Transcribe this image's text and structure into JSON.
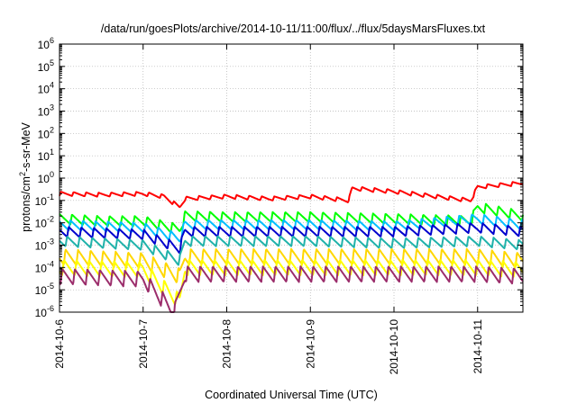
{
  "chart_data": {
    "type": "line",
    "title": "/data/run/goesPlots/archive/2014-10-11/11:00/flux/../flux/5daysMarsFluxes.txt",
    "xlabel": "Coordinated Universal Time (UTC)",
    "ylabel": {
      "base": "protons/cm",
      "sup": "2",
      "rest": "-s-sr-MeV"
    },
    "y_scale": "log",
    "ylim": [
      1e-06,
      1000000.0
    ],
    "y_ticks": [
      {
        "value": 1e-06,
        "base": "10",
        "exp": "-6"
      },
      {
        "value": 1e-05,
        "base": "10",
        "exp": "-5"
      },
      {
        "value": 0.0001,
        "base": "10",
        "exp": "-4"
      },
      {
        "value": 0.001,
        "base": "10",
        "exp": "-3"
      },
      {
        "value": 0.01,
        "base": "10",
        "exp": "-2"
      },
      {
        "value": 0.1,
        "base": "10",
        "exp": "-1"
      },
      {
        "value": 1,
        "base": "10",
        "exp": "0"
      },
      {
        "value": 10,
        "base": "10",
        "exp": "1"
      },
      {
        "value": 100,
        "base": "10",
        "exp": "2"
      },
      {
        "value": 1000,
        "base": "10",
        "exp": "3"
      },
      {
        "value": 10000,
        "base": "10",
        "exp": "4"
      },
      {
        "value": 100000,
        "base": "10",
        "exp": "5"
      },
      {
        "value": 1000000,
        "base": "10",
        "exp": "6"
      }
    ],
    "x_ticks": [
      "2014-10-6",
      "2014-10-7",
      "2014-10-8",
      "2014-10-9",
      "2014-10-10",
      "2014-10-11"
    ],
    "xlim": [
      "2014-10-06T00:00",
      "2014-10-11T13:00"
    ],
    "grid": true,
    "legend": "none",
    "series": [
      {
        "color": "#ff0000",
        "description": "sawtooth, period ~0.15 day",
        "points": [
          [
            "2014-10-06T00:00",
            0.2
          ],
          [
            "2014-10-06T12:00",
            0.18
          ],
          [
            "2014-10-07T00:00",
            0.2
          ],
          [
            "2014-10-07T06:00",
            0.15
          ],
          [
            "2014-10-07T10:30",
            0.05
          ],
          [
            "2014-10-07T12:00",
            0.12
          ],
          [
            "2014-10-08T00:00",
            0.15
          ],
          [
            "2014-10-08T12:00",
            0.12
          ],
          [
            "2014-10-09T00:00",
            0.15
          ],
          [
            "2014-10-09T11:00",
            0.1
          ],
          [
            "2014-10-09T12:00",
            0.35
          ],
          [
            "2014-10-10T00:00",
            0.25
          ],
          [
            "2014-10-10T12:00",
            0.15
          ],
          [
            "2014-10-10T22:00",
            0.1
          ],
          [
            "2014-10-11T00:00",
            0.4
          ],
          [
            "2014-10-11T13:00",
            0.6
          ]
        ]
      },
      {
        "color": "#00ff00",
        "description": "sawtooth, period ~0.15 day",
        "points": [
          [
            "2014-10-06T00:00",
            0.015
          ],
          [
            "2014-10-06T12:00",
            0.012
          ],
          [
            "2014-10-07T00:00",
            0.012
          ],
          [
            "2014-10-07T10:30",
            0.005
          ],
          [
            "2014-10-07T12:00",
            0.02
          ],
          [
            "2014-10-08T00:00",
            0.018
          ],
          [
            "2014-10-09T00:00",
            0.018
          ],
          [
            "2014-10-10T00:00",
            0.015
          ],
          [
            "2014-10-10T22:00",
            0.012
          ],
          [
            "2014-10-11T00:00",
            0.05
          ],
          [
            "2014-10-11T13:00",
            0.02
          ]
        ]
      },
      {
        "color": "#00bfff",
        "description": "sawtooth, period ~0.15 day",
        "points": [
          [
            "2014-10-06T00:00",
            0.008
          ],
          [
            "2014-10-07T00:00",
            0.006
          ],
          [
            "2014-10-07T10:30",
            0.002
          ],
          [
            "2014-10-07T12:00",
            0.008
          ],
          [
            "2014-10-08T00:00",
            0.008
          ],
          [
            "2014-10-09T00:00",
            0.008
          ],
          [
            "2014-10-10T00:00",
            0.007
          ],
          [
            "2014-10-11T00:00",
            0.015
          ],
          [
            "2014-10-11T13:00",
            0.008
          ]
        ]
      },
      {
        "color": "#0000cd",
        "description": "sawtooth, period ~0.15 day",
        "points": [
          [
            "2014-10-06T00:00",
            0.004
          ],
          [
            "2014-10-07T00:00",
            0.003
          ],
          [
            "2014-10-07T10:30",
            0.0007
          ],
          [
            "2014-10-07T12:00",
            0.004
          ],
          [
            "2014-10-08T00:00",
            0.004
          ],
          [
            "2014-10-09T00:00",
            0.004
          ],
          [
            "2014-10-10T00:00",
            0.004
          ],
          [
            "2014-10-11T00:00",
            0.006
          ],
          [
            "2014-10-11T13:00",
            0.004
          ]
        ]
      },
      {
        "color": "#20b2aa",
        "description": "sawtooth, period ~0.15 day",
        "points": [
          [
            "2014-10-06T00:00",
            0.0015
          ],
          [
            "2014-10-07T00:00",
            0.001
          ],
          [
            "2014-10-07T10:30",
            0.0002
          ],
          [
            "2014-10-07T12:00",
            0.0015
          ],
          [
            "2014-10-08T00:00",
            0.0015
          ],
          [
            "2014-10-09T00:00",
            0.0015
          ],
          [
            "2014-10-10T00:00",
            0.0012
          ],
          [
            "2014-10-11T00:00",
            0.0015
          ],
          [
            "2014-10-11T13:00",
            0.001
          ]
        ]
      },
      {
        "color": "#ffd700",
        "description": "sawtooth, period ~0.15 day",
        "points": [
          [
            "2014-10-06T00:00",
            0.0003
          ],
          [
            "2014-10-07T00:00",
            0.0002
          ],
          [
            "2014-10-07T10:30",
            4e-05
          ],
          [
            "2014-10-07T12:00",
            0.0003
          ],
          [
            "2014-10-08T00:00",
            0.0003
          ],
          [
            "2014-10-09T00:00",
            0.0003
          ],
          [
            "2014-10-10T00:00",
            0.0003
          ],
          [
            "2014-10-11T00:00",
            0.0003
          ],
          [
            "2014-10-11T13:00",
            0.0002
          ]
        ]
      },
      {
        "color": "#ffff00",
        "description": "sawtooth, period ~0.15 day",
        "points": [
          [
            "2014-10-06T00:00",
            0.0001
          ],
          [
            "2014-10-07T00:00",
            8e-05
          ],
          [
            "2014-10-07T10:30",
            3e-06
          ],
          [
            "2014-10-07T12:00",
            0.0001
          ],
          [
            "2014-10-08T00:00",
            0.0001
          ],
          [
            "2014-10-09T00:00",
            0.0001
          ],
          [
            "2014-10-10T00:00",
            0.0001
          ],
          [
            "2014-10-11T00:00",
            0.0001
          ],
          [
            "2014-10-11T13:00",
            8e-05
          ]
        ]
      },
      {
        "color": "#9b2d6b",
        "description": "sawtooth, period ~0.15 day",
        "points": [
          [
            "2014-10-06T00:00",
            4e-05
          ],
          [
            "2014-10-07T00:00",
            3e-05
          ],
          [
            "2014-10-07T09:00",
            1e-06
          ],
          [
            "2014-10-07T12:00",
            5e-05
          ],
          [
            "2014-10-08T00:00",
            5e-05
          ],
          [
            "2014-10-09T00:00",
            5e-05
          ],
          [
            "2014-10-10T00:00",
            5e-05
          ],
          [
            "2014-10-11T00:00",
            5e-05
          ],
          [
            "2014-10-11T13:00",
            4e-05
          ]
        ]
      }
    ]
  }
}
